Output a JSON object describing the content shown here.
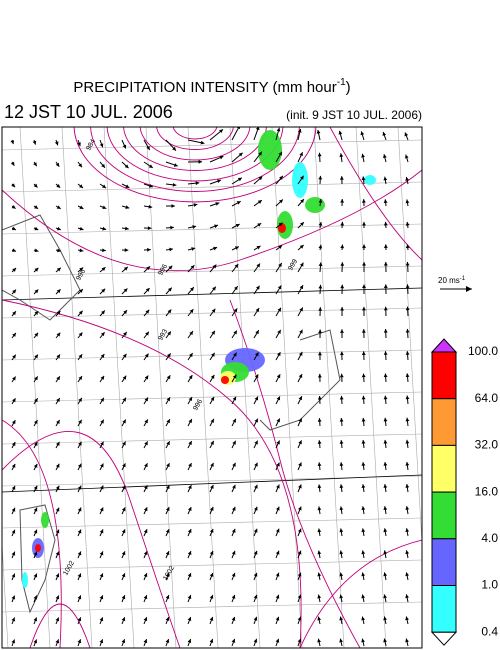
{
  "header": {
    "title": "PRECIPITATION INTENSITY (mm hour",
    "title_exponent": "-1",
    "title_close": ")",
    "valid_time": "12 JST 10 JUL. 2006",
    "init_time": "(init. 9 JST 10 JUL. 2006)"
  },
  "wind_scale": {
    "label": "20 ms",
    "exponent": "-1"
  },
  "legend": {
    "levels": [
      {
        "label": "100.0",
        "color": "#ff0000"
      },
      {
        "label": "64.0",
        "color": "#ff9933"
      },
      {
        "label": "32.0",
        "color": "#ffff66"
      },
      {
        "label": "16.0",
        "color": "#33dd33"
      },
      {
        "label": "4.0",
        "color": "#6666ff"
      },
      {
        "label": "1.0",
        "color": "#33ffff"
      },
      {
        "label": "0.4",
        "color": "#ffffff"
      }
    ],
    "over_color": "#cc33ff"
  },
  "isobar_labels": [
    "984",
    "996",
    "996",
    "993",
    "996",
    "999",
    "1002",
    "1002"
  ]
}
